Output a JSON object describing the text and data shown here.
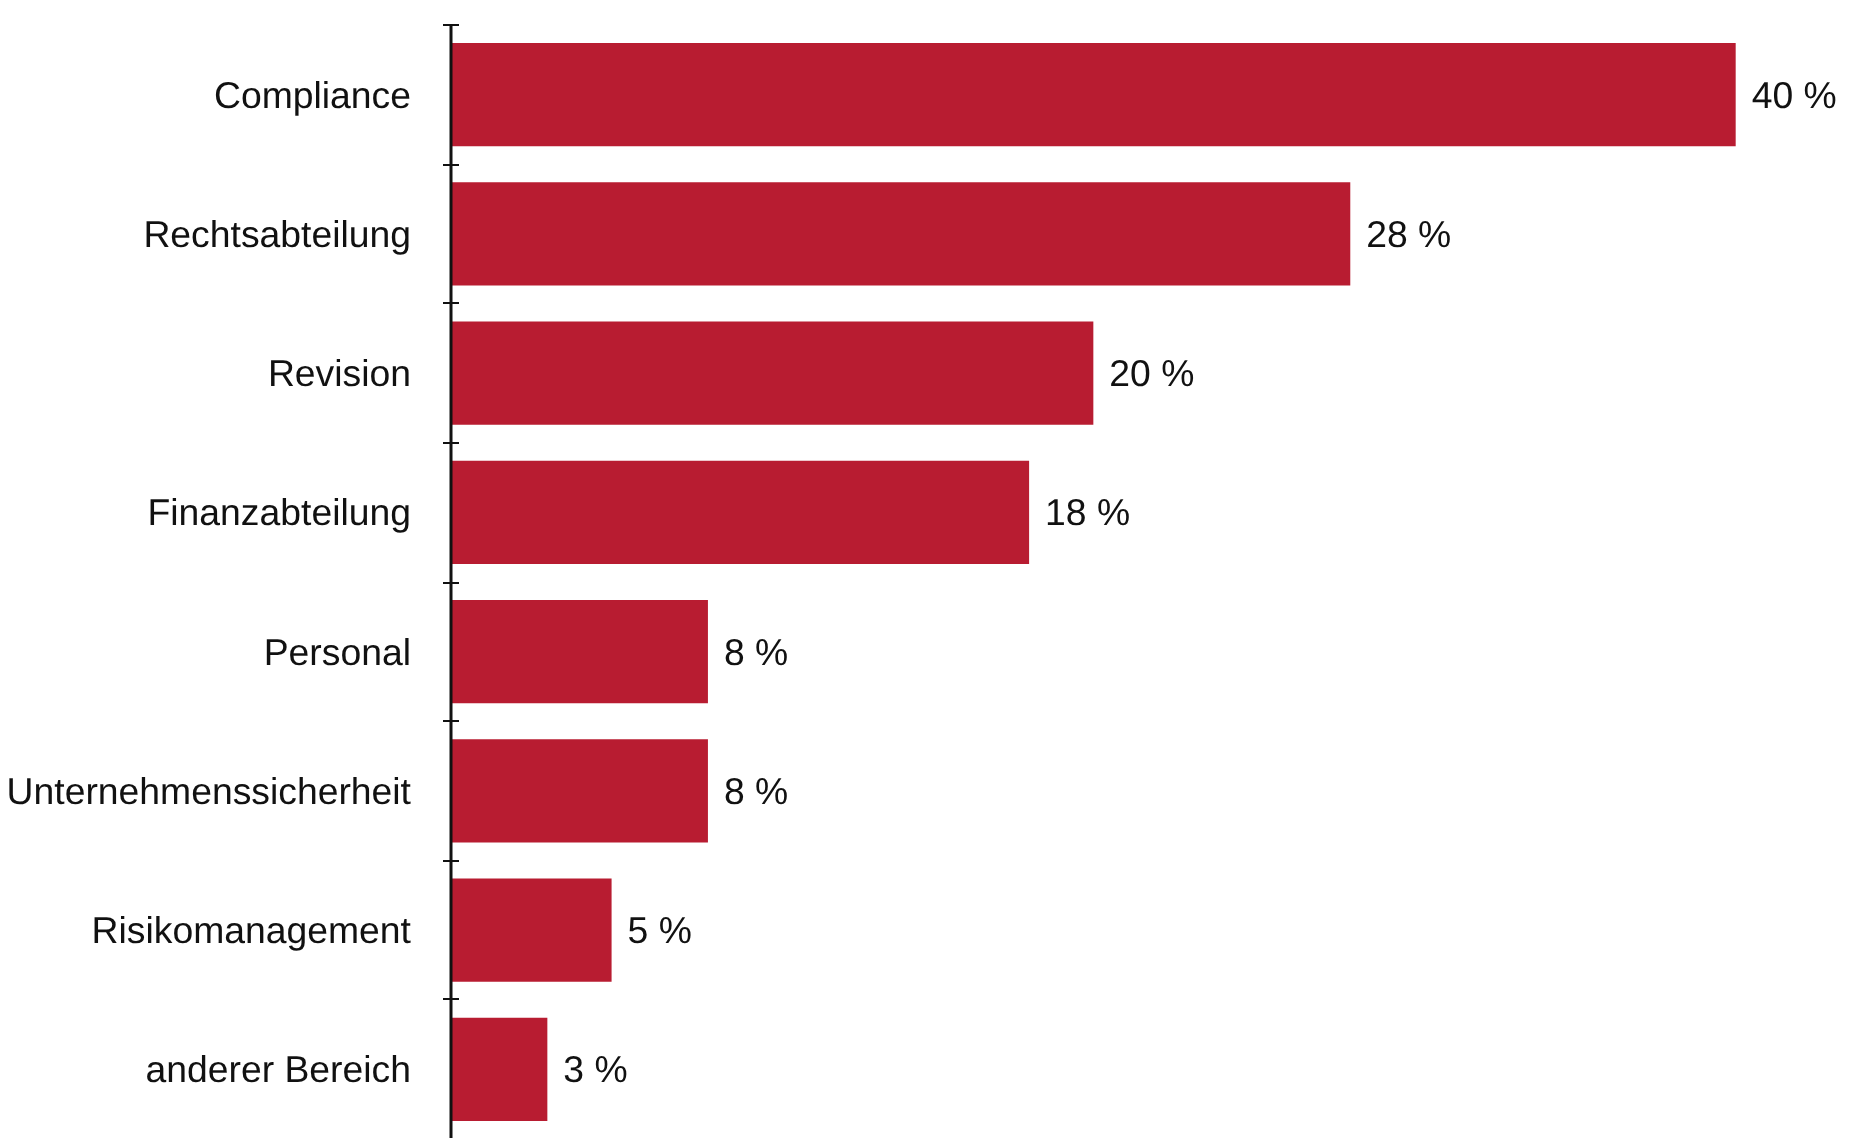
{
  "chart_data": {
    "type": "bar",
    "orientation": "horizontal",
    "categories": [
      "Compliance",
      "Rechtsabteilung",
      "Revision",
      "Finanzabteilung",
      "Personal",
      "Unternehmenssicherheit",
      "Risikomanagement",
      "anderer Bereich"
    ],
    "values": [
      40,
      28,
      20,
      18,
      8,
      8,
      5,
      3
    ],
    "value_labels": [
      "40 %",
      "28 %",
      "20 %",
      "18 %",
      "8 %",
      "8 %",
      "5 %",
      "3 %"
    ],
    "color": "#b81c31",
    "grid": false
  }
}
